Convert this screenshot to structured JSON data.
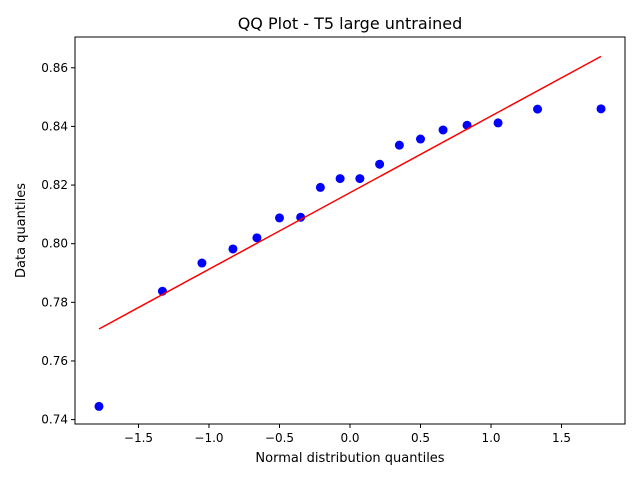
{
  "chart_data": {
    "type": "scatter",
    "title": "QQ Plot - T5 large untrained",
    "xlabel": "Normal distribution quantiles",
    "ylabel": "Data quantiles",
    "xlim": [
      -1.95,
      1.95
    ],
    "ylim": [
      0.7385,
      0.8705
    ],
    "x_ticks": [
      -1.5,
      -1.0,
      -0.5,
      0.0,
      0.5,
      1.0,
      1.5
    ],
    "x_tick_labels": [
      "−1.5",
      "−1.0",
      "−0.5",
      "0.0",
      "0.5",
      "1.0",
      "1.5"
    ],
    "y_ticks": [
      0.74,
      0.76,
      0.78,
      0.8,
      0.82,
      0.84,
      0.86
    ],
    "y_tick_labels": [
      "0.74",
      "0.76",
      "0.78",
      "0.80",
      "0.82",
      "0.84",
      "0.86"
    ],
    "grid": false,
    "series": [
      {
        "kind": "points",
        "color": "#0000ff",
        "x": [
          -1.78,
          -1.33,
          -1.05,
          -0.83,
          -0.66,
          -0.5,
          -0.35,
          -0.21,
          -0.07,
          0.07,
          0.21,
          0.35,
          0.5,
          0.66,
          0.83,
          1.05,
          1.33,
          1.78
        ],
        "y": [
          0.7445,
          0.7838,
          0.7934,
          0.7982,
          0.802,
          0.8088,
          0.809,
          0.8192,
          0.8222,
          0.8222,
          0.8271,
          0.8336,
          0.8357,
          0.8388,
          0.8404,
          0.8412,
          0.8459,
          0.846
        ]
      },
      {
        "kind": "line",
        "color": "#ff0000",
        "x": [
          -1.78,
          1.78
        ],
        "y": [
          0.7709,
          0.8639
        ]
      }
    ]
  }
}
